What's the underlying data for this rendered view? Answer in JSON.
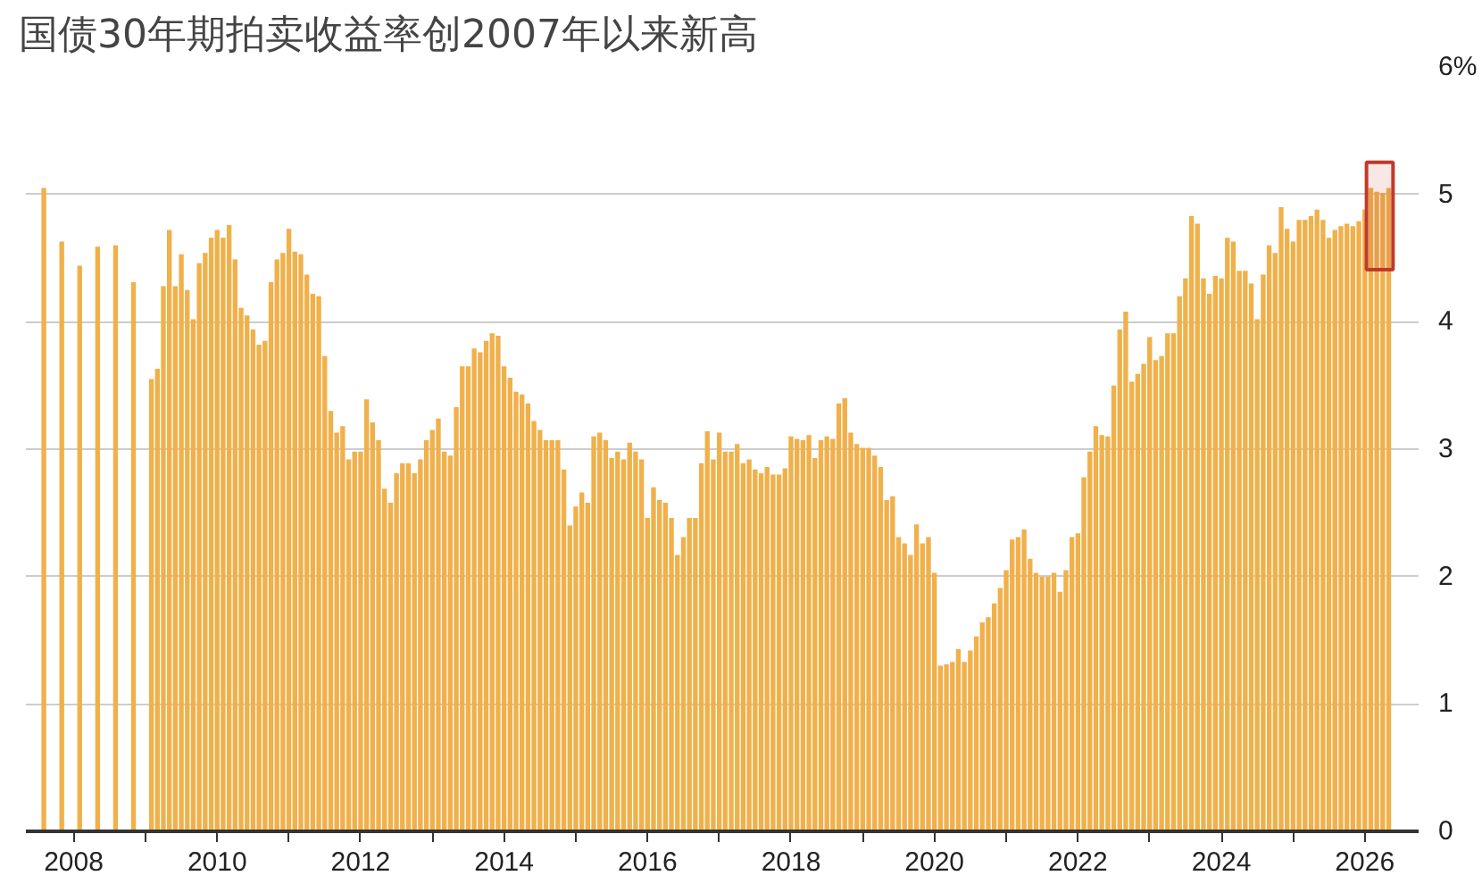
{
  "chart_data": {
    "type": "bar",
    "title": "国债30年期拍卖收益率创2007年以来新高",
    "x": [
      "2007-08",
      "2007-11",
      "2008-02",
      "2008-05",
      "2008-08",
      "2008-11",
      "2009-02",
      "2009-03",
      "2009-04",
      "2009-05",
      "2009-06",
      "2009-07",
      "2009-08",
      "2009-09",
      "2009-10",
      "2009-11",
      "2009-12",
      "2010-01",
      "2010-02",
      "2010-03",
      "2010-04",
      "2010-05",
      "2010-06",
      "2010-07",
      "2010-08",
      "2010-09",
      "2010-10",
      "2010-11",
      "2010-12",
      "2011-01",
      "2011-02",
      "2011-03",
      "2011-04",
      "2011-05",
      "2011-06",
      "2011-07",
      "2011-08",
      "2011-09",
      "2011-10",
      "2011-11",
      "2011-12",
      "2012-01",
      "2012-02",
      "2012-03",
      "2012-04",
      "2012-05",
      "2012-06",
      "2012-07",
      "2012-08",
      "2012-09",
      "2012-10",
      "2012-11",
      "2012-12",
      "2013-01",
      "2013-02",
      "2013-03",
      "2013-04",
      "2013-05",
      "2013-06",
      "2013-07",
      "2013-08",
      "2013-09",
      "2013-10",
      "2013-11",
      "2013-12",
      "2014-01",
      "2014-02",
      "2014-03",
      "2014-04",
      "2014-05",
      "2014-06",
      "2014-07",
      "2014-08",
      "2014-09",
      "2014-10",
      "2014-11",
      "2014-12",
      "2015-01",
      "2015-02",
      "2015-03",
      "2015-04",
      "2015-05",
      "2015-06",
      "2015-07",
      "2015-08",
      "2015-09",
      "2015-10",
      "2015-11",
      "2015-12",
      "2016-01",
      "2016-02",
      "2016-03",
      "2016-04",
      "2016-05",
      "2016-06",
      "2016-07",
      "2016-08",
      "2016-09",
      "2016-10",
      "2016-11",
      "2016-12",
      "2017-01",
      "2017-02",
      "2017-03",
      "2017-04",
      "2017-05",
      "2017-06",
      "2017-07",
      "2017-08",
      "2017-09",
      "2017-10",
      "2017-11",
      "2017-12",
      "2018-01",
      "2018-02",
      "2018-03",
      "2018-04",
      "2018-05",
      "2018-06",
      "2018-07",
      "2018-08",
      "2018-09",
      "2018-10",
      "2018-11",
      "2018-12",
      "2019-01",
      "2019-02",
      "2019-03",
      "2019-04",
      "2019-05",
      "2019-06",
      "2019-07",
      "2019-08",
      "2019-09",
      "2019-10",
      "2019-11",
      "2019-12",
      "2020-01",
      "2020-02",
      "2020-03",
      "2020-04",
      "2020-05",
      "2020-06",
      "2020-07",
      "2020-08",
      "2020-09",
      "2020-10",
      "2020-11",
      "2020-12",
      "2021-01",
      "2021-02",
      "2021-03",
      "2021-04",
      "2021-05",
      "2021-06",
      "2021-07",
      "2021-08",
      "2021-09",
      "2021-10",
      "2021-11",
      "2021-12",
      "2022-01",
      "2022-02",
      "2022-03",
      "2022-04",
      "2022-05",
      "2022-06",
      "2022-07",
      "2022-08",
      "2022-09",
      "2022-10",
      "2022-11",
      "2022-12",
      "2023-01",
      "2023-02",
      "2023-03",
      "2023-04",
      "2023-05",
      "2023-06",
      "2023-07",
      "2023-08",
      "2023-09",
      "2023-10",
      "2023-11",
      "2023-12",
      "2024-01",
      "2024-02",
      "2024-03",
      "2024-04",
      "2024-05",
      "2024-06",
      "2024-07",
      "2024-08",
      "2024-09",
      "2024-10",
      "2024-11",
      "2024-12",
      "2025-01",
      "2025-02",
      "2025-03",
      "2025-04",
      "2025-05",
      "2025-06",
      "2025-07",
      "2025-08",
      "2025-09",
      "2025-10",
      "2025-11",
      "2025-12",
      "2026-01",
      "2026-02",
      "2026-03",
      "2026-04",
      "2026-05"
    ],
    "values": [
      5.05,
      4.63,
      4.44,
      4.59,
      4.6,
      4.31,
      3.55,
      3.63,
      4.28,
      4.72,
      4.28,
      4.53,
      4.25,
      4.02,
      4.46,
      4.54,
      4.66,
      4.72,
      4.66,
      4.76,
      4.49,
      4.11,
      4.05,
      3.94,
      3.82,
      3.85,
      4.31,
      4.49,
      4.54,
      4.73,
      4.55,
      4.53,
      4.37,
      4.22,
      4.2,
      3.73,
      3.3,
      3.13,
      3.18,
      2.92,
      2.98,
      2.98,
      3.39,
      3.21,
      3.07,
      2.69,
      2.58,
      2.81,
      2.89,
      2.89,
      2.81,
      2.92,
      3.07,
      3.15,
      3.24,
      2.98,
      2.95,
      3.33,
      3.65,
      3.65,
      3.79,
      3.76,
      3.85,
      3.91,
      3.89,
      3.65,
      3.56,
      3.45,
      3.43,
      3.36,
      3.22,
      3.15,
      3.07,
      3.07,
      3.07,
      2.84,
      2.4,
      2.55,
      2.66,
      2.58,
      3.1,
      3.13,
      3.07,
      2.93,
      2.98,
      2.92,
      3.05,
      2.98,
      2.92,
      2.46,
      2.7,
      2.6,
      2.58,
      2.46,
      2.17,
      2.31,
      2.46,
      2.46,
      2.89,
      3.14,
      2.92,
      3.13,
      2.98,
      2.98,
      3.04,
      2.89,
      2.92,
      2.84,
      2.81,
      2.86,
      2.8,
      2.8,
      2.85,
      3.1,
      3.08,
      3.07,
      3.11,
      2.93,
      3.07,
      3.1,
      3.08,
      3.36,
      3.4,
      3.13,
      3.04,
      3.01,
      3.01,
      2.95,
      2.86,
      2.6,
      2.63,
      2.31,
      2.26,
      2.17,
      2.41,
      2.26,
      2.31,
      2.03,
      1.3,
      1.31,
      1.33,
      1.43,
      1.33,
      1.42,
      1.53,
      1.64,
      1.68,
      1.79,
      1.91,
      2.05,
      2.29,
      2.31,
      2.37,
      2.14,
      2.03,
      2.0,
      2.0,
      2.03,
      1.88,
      2.05,
      2.31,
      2.34,
      2.78,
      2.98,
      3.18,
      3.11,
      3.1,
      3.5,
      3.94,
      4.08,
      3.53,
      3.59,
      3.67,
      3.88,
      3.7,
      3.73,
      3.91,
      3.91,
      4.2,
      4.34,
      4.83,
      4.77,
      4.34,
      4.22,
      4.36,
      4.34,
      4.66,
      4.63,
      4.4,
      4.4,
      4.3,
      4.02,
      4.37,
      4.6,
      4.54,
      4.9,
      4.73,
      4.63,
      4.8,
      4.8,
      4.83,
      4.88,
      4.8,
      4.66,
      4.72,
      4.75,
      4.77,
      4.75,
      4.79,
      4.88,
      5.05,
      5.02,
      5.01,
      5.05
    ],
    "color": "#f0b04a",
    "xlim": [
      "2007-05",
      "2026-10"
    ],
    "xticks": [
      {
        "value": "2008",
        "label": "2008"
      },
      {
        "value": "2009",
        "label": null
      },
      {
        "value": "2010",
        "label": "2010"
      },
      {
        "value": "2011",
        "label": null
      },
      {
        "value": "2012",
        "label": "2012"
      },
      {
        "value": "2013",
        "label": null
      },
      {
        "value": "2014",
        "label": "2014"
      },
      {
        "value": "2015",
        "label": null
      },
      {
        "value": "2016",
        "label": "2016"
      },
      {
        "value": "2017",
        "label": null
      },
      {
        "value": "2018",
        "label": "2018"
      },
      {
        "value": "2019",
        "label": null
      },
      {
        "value": "2020",
        "label": "2020"
      },
      {
        "value": "2021",
        "label": null
      },
      {
        "value": "2022",
        "label": "2022"
      },
      {
        "value": "2023",
        "label": null
      },
      {
        "value": "2024",
        "label": "2024"
      },
      {
        "value": "2025",
        "label": null
      },
      {
        "value": "2026",
        "label": "2026"
      }
    ],
    "ylim": [
      0,
      6
    ],
    "yticks": [
      0,
      1,
      2,
      3,
      4,
      5,
      {
        "value": 6,
        "label": "6%"
      }
    ],
    "grid": "y",
    "bands": [
      {
        "axis": "x",
        "from": "2026-02",
        "to": "2026-05",
        "color": "#c0392b"
      }
    ]
  }
}
